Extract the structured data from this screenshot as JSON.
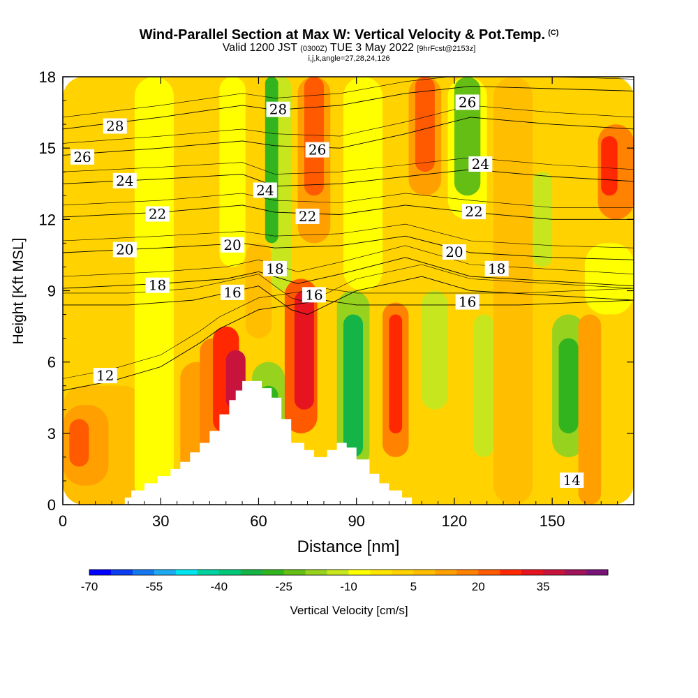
{
  "title": {
    "main": "Wind-Parallel Section at Max W: Vertical Velocity & Pot.Temp.",
    "copyright": "(C)",
    "valid_prefix": "Valid 1200 JST",
    "valid_zulu": "(0300Z)",
    "valid_date": "TUE 3 May 2022",
    "forecast": "[9hrFcst@2153z]",
    "indices": "i,j,k,angle=27,28,24,126"
  },
  "colors": {
    "frame": "#000000",
    "terrain": "#ffffff",
    "contour": "#000000"
  },
  "chart_data": {
    "type": "heatmap",
    "xlabel": "Distance [nm]",
    "ylabel": "Height [Kft MSL]",
    "xlim": [
      0,
      175
    ],
    "ylim": [
      0,
      18
    ],
    "x_ticks": [
      0,
      30,
      60,
      90,
      120,
      150
    ],
    "y_ticks": [
      0,
      3,
      6,
      9,
      12,
      15,
      18
    ],
    "colorbar": {
      "label": "Vertical Velocity [cm/s]",
      "tick_labels": [
        "-70",
        "-55",
        "-40",
        "-25",
        "-10",
        "5",
        "20",
        "35"
      ],
      "tick_values": [
        -70,
        -55,
        -40,
        -25,
        -10,
        5,
        20,
        35
      ],
      "bins": [
        -70,
        -65,
        -60,
        -55,
        -50,
        -45,
        -40,
        -35,
        -30,
        -25,
        -20,
        -15,
        -10,
        -5,
        0,
        5,
        10,
        15,
        20,
        25,
        30,
        35,
        40,
        45,
        50
      ],
      "colors": [
        "#0000ff",
        "#0a3cf0",
        "#1478f0",
        "#1eaaf0",
        "#00e6f0",
        "#00d2a0",
        "#00c878",
        "#14b446",
        "#32b41e",
        "#64be14",
        "#96d21e",
        "#c8e61e",
        "#ffff00",
        "#ffe600",
        "#ffd200",
        "#ffbe00",
        "#ffa000",
        "#ff8200",
        "#ff5a00",
        "#ff2800",
        "#e6141e",
        "#c8143c",
        "#a0145a",
        "#781478"
      ]
    },
    "terrain_nm_kft": [
      [
        0,
        0
      ],
      [
        19,
        0
      ],
      [
        19,
        0.3
      ],
      [
        21,
        0.3
      ],
      [
        21,
        0.6
      ],
      [
        25,
        0.6
      ],
      [
        25,
        0.9
      ],
      [
        29,
        0.9
      ],
      [
        29,
        1.2
      ],
      [
        33,
        1.2
      ],
      [
        33,
        1.5
      ],
      [
        36,
        1.5
      ],
      [
        36,
        1.8
      ],
      [
        39,
        1.8
      ],
      [
        39,
        2.2
      ],
      [
        42,
        2.2
      ],
      [
        42,
        2.6
      ],
      [
        45,
        2.6
      ],
      [
        45,
        3.1
      ],
      [
        48,
        3.1
      ],
      [
        48,
        3.8
      ],
      [
        51,
        3.8
      ],
      [
        51,
        4.4
      ],
      [
        53,
        4.4
      ],
      [
        53,
        4.8
      ],
      [
        55,
        4.8
      ],
      [
        55,
        5.2
      ],
      [
        61,
        5.2
      ],
      [
        61,
        4.9
      ],
      [
        64,
        4.9
      ],
      [
        64,
        4.5
      ],
      [
        67,
        4.5
      ],
      [
        67,
        3.6
      ],
      [
        70,
        3.6
      ],
      [
        70,
        2.6
      ],
      [
        74,
        2.6
      ],
      [
        74,
        2.3
      ],
      [
        77,
        2.3
      ],
      [
        77,
        2.0
      ],
      [
        81,
        2.0
      ],
      [
        81,
        2.3
      ],
      [
        84,
        2.3
      ],
      [
        84,
        2.6
      ],
      [
        87,
        2.6
      ],
      [
        87,
        2.4
      ],
      [
        90,
        2.4
      ],
      [
        90,
        1.9
      ],
      [
        94,
        1.9
      ],
      [
        94,
        1.3
      ],
      [
        97,
        1.3
      ],
      [
        97,
        0.9
      ],
      [
        100,
        0.9
      ],
      [
        100,
        0.6
      ],
      [
        104,
        0.6
      ],
      [
        104,
        0.3
      ],
      [
        107,
        0.3
      ],
      [
        107,
        0
      ],
      [
        175,
        0
      ]
    ],
    "theta_contours": [
      {
        "label": "12",
        "label_nm": 13,
        "label_kft": 5.4,
        "points": [
          [
            0,
            4.8
          ],
          [
            15,
            5.2
          ],
          [
            30,
            5.8
          ],
          [
            42,
            6.8
          ],
          [
            48,
            7.4
          ],
          [
            60,
            8.2
          ],
          [
            80,
            8.6
          ],
          [
            90,
            8.4
          ],
          [
            110,
            8.4
          ],
          [
            140,
            8.4
          ],
          [
            175,
            8.6
          ]
        ]
      },
      {
        "label": "16",
        "label_nm": 52,
        "label_kft": 8.9,
        "points": [
          [
            0,
            8.4
          ],
          [
            20,
            8.4
          ],
          [
            40,
            8.6
          ],
          [
            60,
            9.2
          ],
          [
            70,
            8.2
          ],
          [
            75,
            8.0
          ],
          [
            90,
            9.0
          ],
          [
            110,
            9.6
          ],
          [
            125,
            9.0
          ],
          [
            150,
            8.8
          ],
          [
            175,
            8.6
          ]
        ]
      },
      {
        "label": "16",
        "label_nm": 77,
        "label_kft": 8.8,
        "points": []
      },
      {
        "label": "16",
        "label_nm": 124,
        "label_kft": 8.5,
        "points": []
      },
      {
        "label": "18",
        "label_nm": 29,
        "label_kft": 9.2,
        "points": [
          [
            0,
            9.1
          ],
          [
            30,
            9.3
          ],
          [
            50,
            9.5
          ],
          [
            60,
            9.8
          ],
          [
            72,
            9.3
          ],
          [
            85,
            9.7
          ],
          [
            105,
            10.4
          ],
          [
            125,
            9.6
          ],
          [
            150,
            9.4
          ],
          [
            175,
            9.2
          ]
        ]
      },
      {
        "label": "18",
        "label_nm": 65,
        "label_kft": 9.9,
        "points": []
      },
      {
        "label": "18",
        "label_nm": 133,
        "label_kft": 9.9,
        "points": []
      },
      {
        "label": "20",
        "label_nm": 19,
        "label_kft": 10.7,
        "points": [
          [
            0,
            10.6
          ],
          [
            30,
            10.8
          ],
          [
            55,
            11.0
          ],
          [
            65,
            10.8
          ],
          [
            85,
            10.9
          ],
          [
            105,
            11.3
          ],
          [
            125,
            10.6
          ],
          [
            150,
            10.4
          ],
          [
            175,
            10.3
          ]
        ]
      },
      {
        "label": "20",
        "label_nm": 52,
        "label_kft": 10.9,
        "points": []
      },
      {
        "label": "20",
        "label_nm": 120,
        "label_kft": 10.6,
        "points": []
      },
      {
        "label": "22",
        "label_nm": 29,
        "label_kft": 12.2,
        "points": [
          [
            0,
            12.1
          ],
          [
            30,
            12.3
          ],
          [
            55,
            12.6
          ],
          [
            65,
            12.3
          ],
          [
            85,
            12.2
          ],
          [
            105,
            12.6
          ],
          [
            125,
            12.3
          ],
          [
            150,
            12.0
          ],
          [
            175,
            12.0
          ]
        ]
      },
      {
        "label": "22",
        "label_nm": 75,
        "label_kft": 12.1,
        "points": []
      },
      {
        "label": "22",
        "label_nm": 126,
        "label_kft": 12.3,
        "points": []
      },
      {
        "label": "24",
        "label_nm": 19,
        "label_kft": 13.6,
        "points": [
          [
            0,
            13.5
          ],
          [
            30,
            13.7
          ],
          [
            55,
            13.9
          ],
          [
            65,
            13.4
          ],
          [
            85,
            13.5
          ],
          [
            105,
            13.8
          ],
          [
            125,
            14.1
          ],
          [
            150,
            13.8
          ],
          [
            175,
            13.6
          ]
        ]
      },
      {
        "label": "24",
        "label_nm": 62,
        "label_kft": 13.2,
        "points": []
      },
      {
        "label": "24",
        "label_nm": 128,
        "label_kft": 14.3,
        "points": []
      },
      {
        "label": "26",
        "label_nm": 6,
        "label_kft": 14.6,
        "points": [
          [
            0,
            14.7
          ],
          [
            30,
            15.0
          ],
          [
            55,
            15.3
          ],
          [
            65,
            15.1
          ],
          [
            85,
            15.0
          ],
          [
            105,
            15.6
          ],
          [
            125,
            16.3
          ],
          [
            150,
            16.0
          ],
          [
            175,
            15.8
          ]
        ]
      },
      {
        "label": "26",
        "label_nm": 78,
        "label_kft": 14.9,
        "points": []
      },
      {
        "label": "26",
        "label_nm": 124,
        "label_kft": 16.9,
        "points": []
      },
      {
        "label": "28",
        "label_nm": 16,
        "label_kft": 15.9,
        "points": [
          [
            0,
            15.8
          ],
          [
            30,
            16.3
          ],
          [
            55,
            16.8
          ],
          [
            65,
            16.6
          ],
          [
            85,
            16.8
          ],
          [
            105,
            17.3
          ],
          [
            125,
            17.6
          ],
          [
            150,
            17.5
          ],
          [
            175,
            17.4
          ]
        ]
      },
      {
        "label": "28",
        "label_nm": 66,
        "label_kft": 16.6,
        "points": []
      },
      {
        "label": "14",
        "label_nm": 156,
        "label_kft": 1.0,
        "points": []
      }
    ]
  }
}
